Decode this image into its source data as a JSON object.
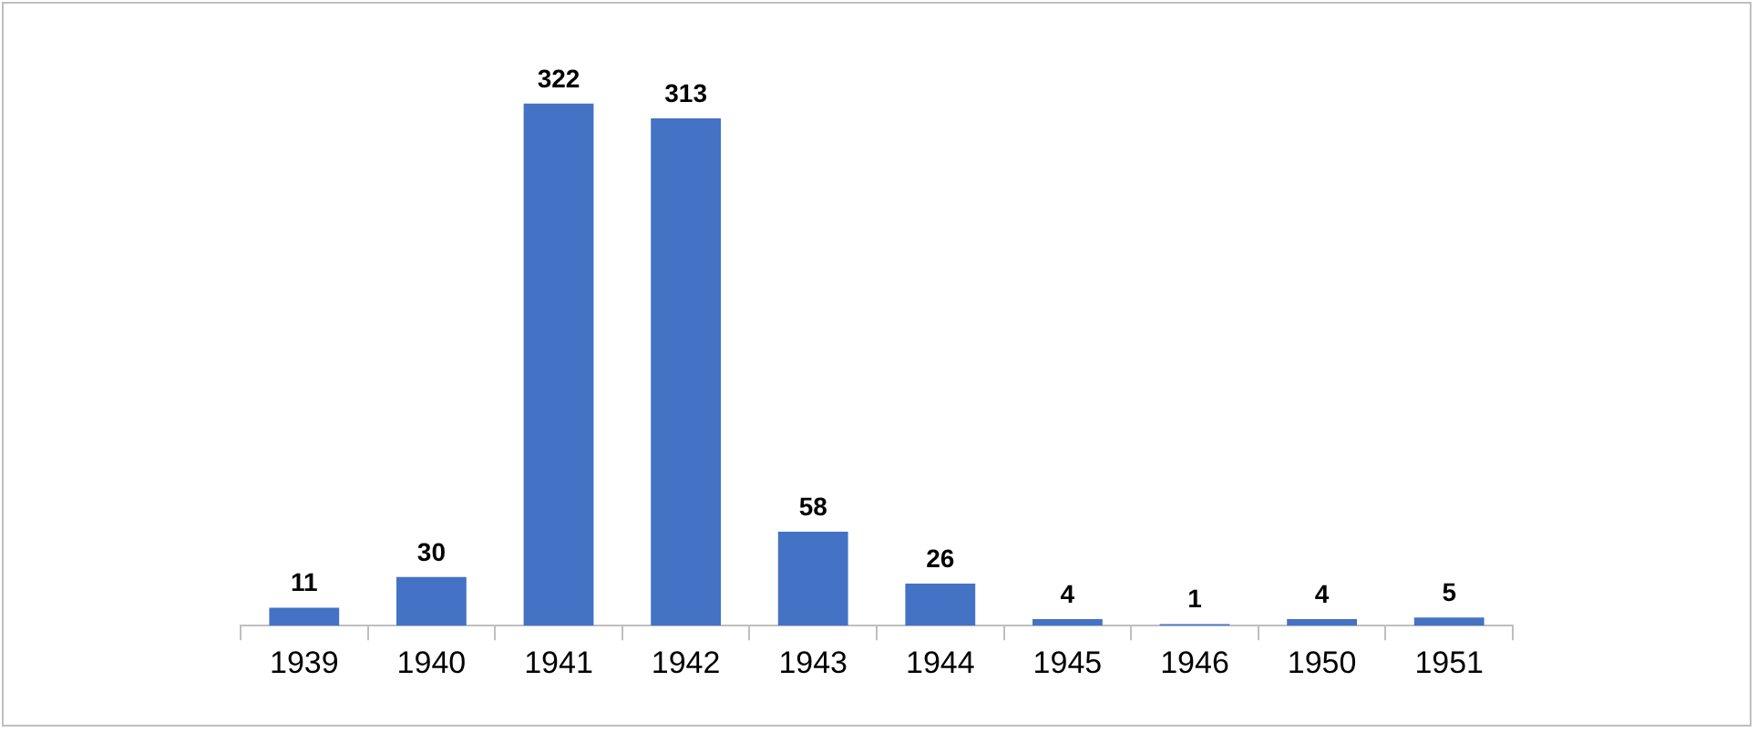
{
  "chart_data": {
    "type": "bar",
    "categories": [
      "1939",
      "1940",
      "1941",
      "1942",
      "1943",
      "1944",
      "1945",
      "1946",
      "1950",
      "1951"
    ],
    "values": [
      11,
      30,
      322,
      313,
      58,
      26,
      4,
      1,
      4,
      5
    ],
    "color": "#4472c4",
    "data_labels": true,
    "grid": false,
    "legend": false,
    "tick_labels": "x"
  }
}
